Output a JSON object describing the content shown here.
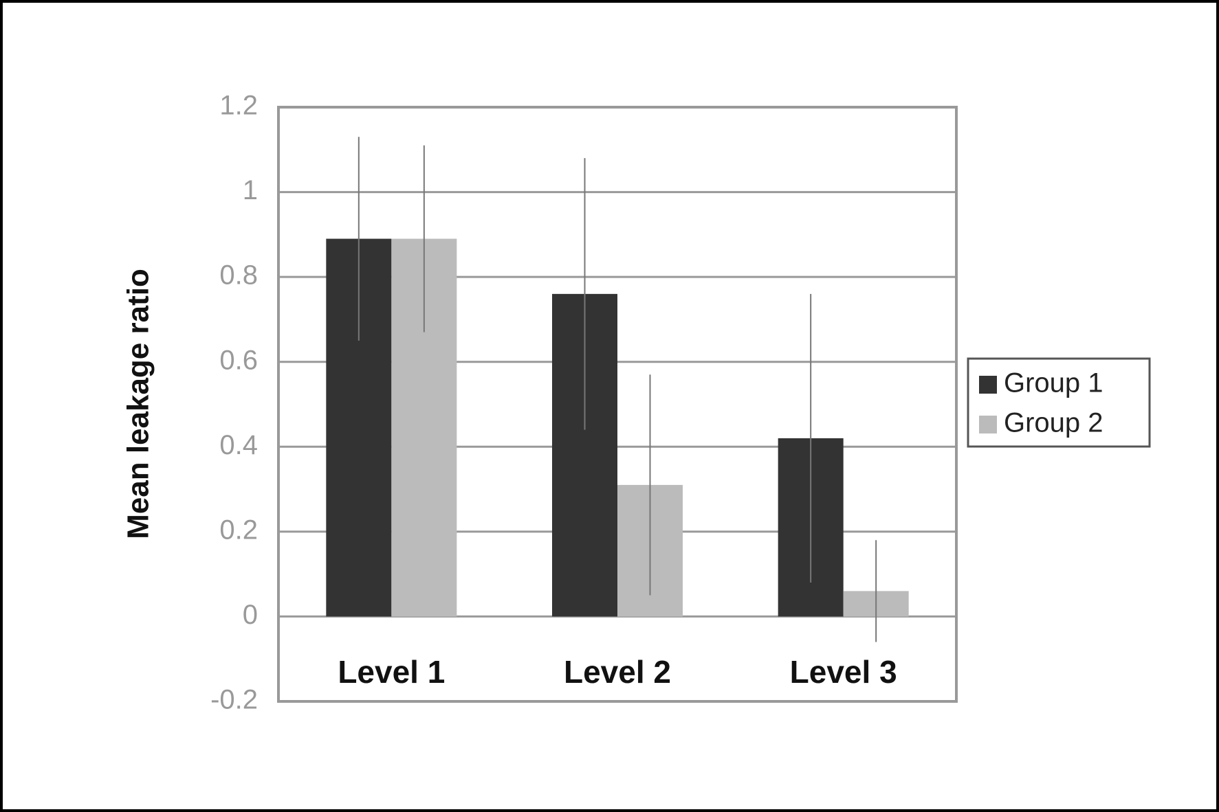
{
  "chart_data": {
    "type": "bar",
    "y_label": "Mean leakage ratio",
    "categories": [
      "Level 1",
      "Level 2",
      "Level 3"
    ],
    "series": [
      {
        "name": "Group 1",
        "color": "#333333",
        "values": [
          0.89,
          0.76,
          0.42
        ],
        "errors": [
          0.24,
          0.32,
          0.34
        ]
      },
      {
        "name": "Group 2",
        "color": "#bbbbbb",
        "values": [
          0.89,
          0.31,
          0.06
        ],
        "errors": [
          0.22,
          0.26,
          0.12
        ]
      }
    ],
    "ylim": [
      -0.2,
      1.2
    ],
    "yticks": [
      -0.2,
      0,
      0.2,
      0.4,
      0.6,
      0.8,
      1,
      1.2
    ],
    "grid": true,
    "legend": "right"
  }
}
